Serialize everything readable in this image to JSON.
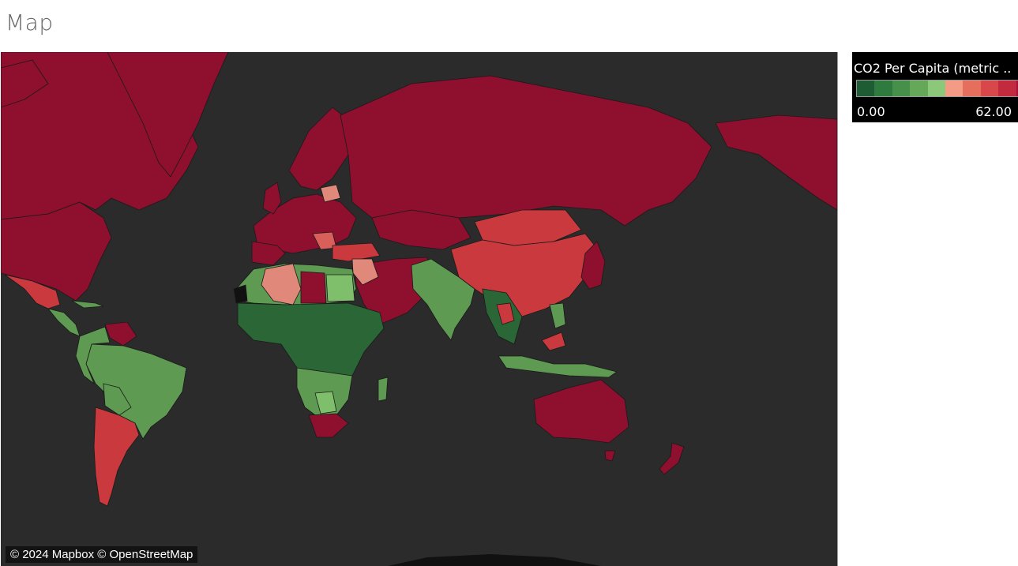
{
  "page": {
    "title": "Map"
  },
  "legend": {
    "title": "CO2 Per Capita (metric ..",
    "min": "0.00",
    "max": "62.00",
    "ramp_colors": [
      "#1e5c33",
      "#2f7a3f",
      "#47904b",
      "#66a85a",
      "#8bc87a",
      "#f39b84",
      "#e56e5c",
      "#d8474a",
      "#c42a3d",
      "#a51238"
    ]
  },
  "map": {
    "attribution": "© 2024 Mapbox © OpenStreetMap",
    "colors": {
      "ocean": "#2b2b2b",
      "very_high": "#8f0f2e",
      "high": "#c9393e",
      "mid_high": "#d9605a",
      "mid": "#e0897a",
      "low_mid": "#7fbf6b",
      "low": "#5f9a52",
      "very_low": "#2b6637",
      "no_data": "#111111"
    }
  }
}
